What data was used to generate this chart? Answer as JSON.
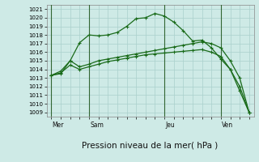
{
  "bg_color": "#ceeae6",
  "grid_color": "#aad0cc",
  "line_color": "#1a6b1a",
  "marker_color": "#1a6b1a",
  "xlabel": "Pression niveau de la mer( hPa )",
  "xlabel_fontsize": 7.5,
  "ylim": [
    1008.5,
    1021.5
  ],
  "yticks": [
    1009,
    1010,
    1011,
    1012,
    1013,
    1014,
    1015,
    1016,
    1017,
    1018,
    1019,
    1020,
    1021
  ],
  "day_labels": [
    "Mer",
    "Sam",
    "Jeu",
    "Ven"
  ],
  "day_positions": [
    0,
    4,
    12,
    18
  ],
  "vline_color": "#336633",
  "series1": [
    1013.3,
    1013.5,
    1015.0,
    1017.1,
    1018.0,
    1017.9,
    1018.0,
    1018.3,
    1019.0,
    1019.9,
    1020.0,
    1020.5,
    1020.2,
    1019.5,
    1018.5,
    1017.3,
    1017.4,
    1016.5,
    1015.2,
    1014.0,
    1011.5,
    1009.0
  ],
  "series2": [
    1013.3,
    1013.8,
    1015.0,
    1014.3,
    1014.6,
    1015.0,
    1015.2,
    1015.4,
    1015.6,
    1015.8,
    1016.0,
    1016.2,
    1016.4,
    1016.6,
    1016.8,
    1017.0,
    1017.2,
    1017.0,
    1016.5,
    1015.0,
    1013.0,
    1009.0
  ],
  "series3": [
    1013.3,
    1013.6,
    1014.5,
    1014.0,
    1014.3,
    1014.6,
    1014.9,
    1015.1,
    1015.3,
    1015.5,
    1015.7,
    1015.8,
    1015.9,
    1016.0,
    1016.1,
    1016.2,
    1016.3,
    1016.0,
    1015.5,
    1014.0,
    1012.0,
    1009.0
  ],
  "num_points": 22,
  "tick_fontsize": 5.0,
  "day_label_fontsize": 5.5
}
